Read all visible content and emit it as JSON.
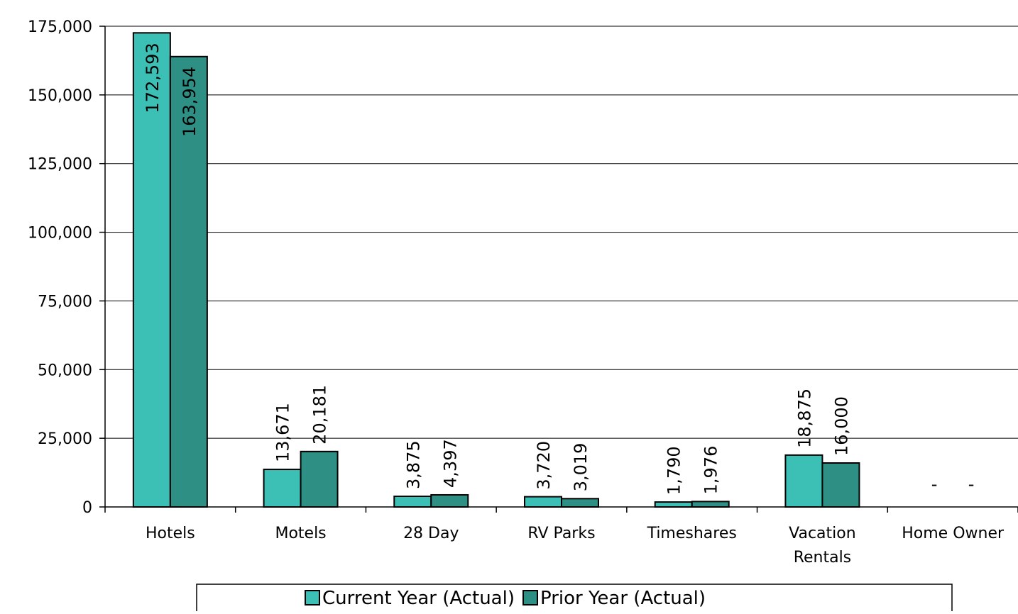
{
  "chart_data": {
    "type": "bar",
    "title": "",
    "xlabel": "",
    "ylabel": "",
    "categories": [
      [
        "Hotels"
      ],
      [
        "Motels"
      ],
      [
        "28 Day"
      ],
      [
        "RV Parks"
      ],
      [
        "Timeshares"
      ],
      [
        "Vacation",
        "Rentals"
      ],
      [
        "Home Owner"
      ]
    ],
    "series": [
      {
        "name": "Current Year (Actual)",
        "color": "#3cbfb5",
        "values": [
          172593,
          13671,
          3875,
          3720,
          1790,
          18875,
          0
        ],
        "labels": [
          "172,593",
          "13,671",
          "3,875",
          "3,720",
          "1,790",
          "18,875",
          "-"
        ]
      },
      {
        "name": "Prior Year (Actual)",
        "color": "#2e8f85",
        "values": [
          163954,
          20181,
          4397,
          3019,
          1976,
          16000,
          0
        ],
        "labels": [
          "163,954",
          "20,181",
          "4,397",
          "3,019",
          "1,976",
          "16,000",
          "-"
        ]
      }
    ],
    "ylim": [
      0,
      175000
    ],
    "yticks": [
      0,
      25000,
      50000,
      75000,
      100000,
      125000,
      150000,
      175000
    ],
    "ytick_labels": [
      "0",
      "25,000",
      "50,000",
      "75,000",
      "100,000",
      "125,000",
      "150,000",
      "175,000"
    ],
    "grid": true,
    "legend": "bottom"
  }
}
